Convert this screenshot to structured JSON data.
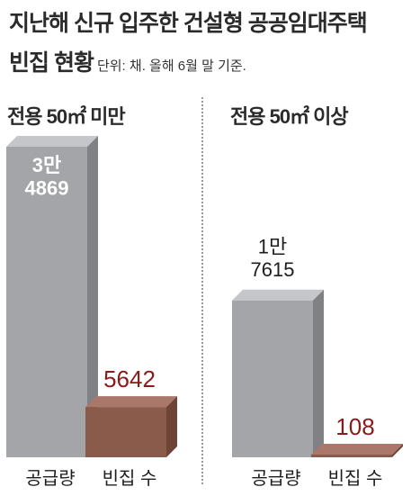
{
  "title_line1": "지난해 신규 입주한 건설형 공공임대주택",
  "title_line2": "빈집 현황",
  "unit_note": "단위: 채. 올해 6월 말 기준.",
  "colors": {
    "supply_front": "#a3a5a8",
    "supply_side": "#7f8184",
    "supply_top": "#c4c6c9",
    "vacant_front": "#8a5a4a",
    "vacant_side": "#6e4437",
    "vacant_top": "#a9786a",
    "vacant_label": "#8b1a1a",
    "supply_label_inside": "#ffffff",
    "supply_label_outside": "#1e1e1e"
  },
  "chart_data": {
    "type": "bar",
    "unit": "채",
    "categories": [
      "공급량",
      "빈집 수"
    ],
    "groups": [
      {
        "label": "전용 50㎡ 미만",
        "values": [
          34869,
          5642
        ],
        "value_labels": [
          "3만\n4869",
          "5642"
        ]
      },
      {
        "label": "전용 50㎡ 이상",
        "values": [
          17615,
          108
        ],
        "value_labels": [
          "1만\n7615",
          "108"
        ]
      }
    ],
    "ylim": [
      0,
      34869
    ]
  }
}
